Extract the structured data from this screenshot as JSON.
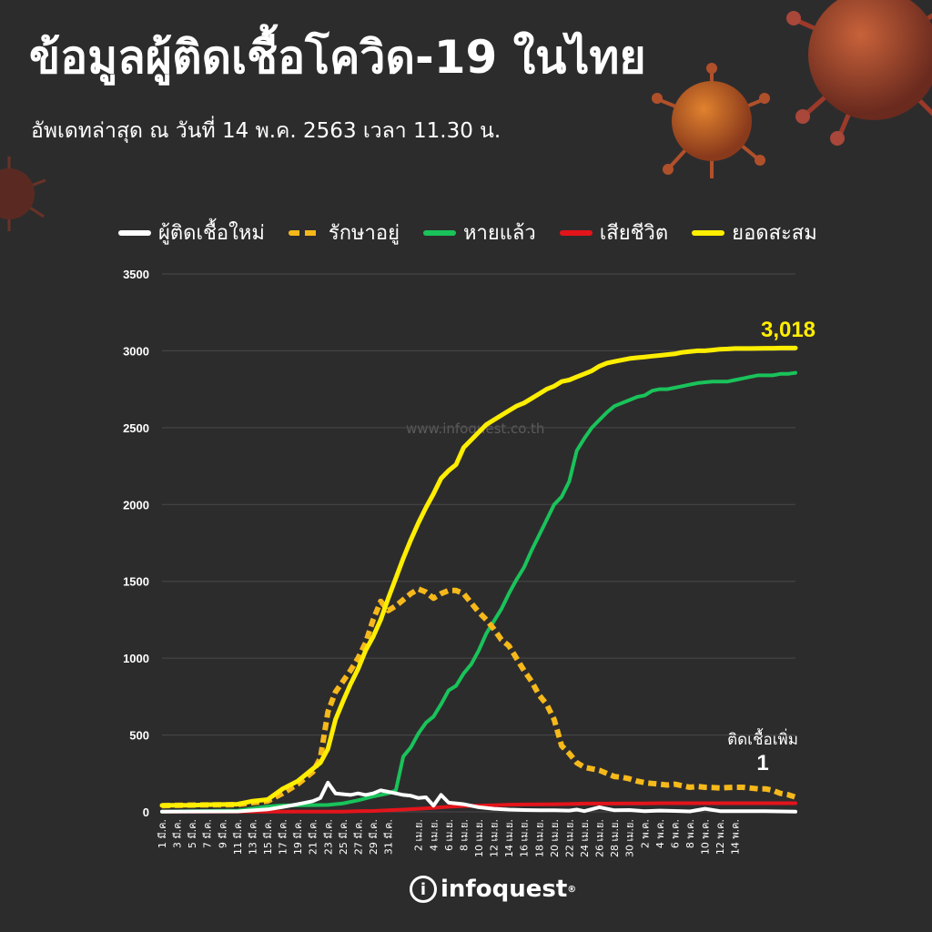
{
  "header": {
    "title": "ข้อมูลผู้ติดเชื้อโควิด-19 ในไทย",
    "subtitle": "อัพเดทล่าสุด ณ วันที่  14 พ.ค. 2563 เวลา 11.30 น."
  },
  "watermark": "www.infoquest.co.th",
  "brand": {
    "mark": "i",
    "name": "infoquest",
    "sup": "®"
  },
  "colors": {
    "background": "#2d2c2d",
    "new_cases": "#ffffff",
    "active": "#f6b91a",
    "recovered": "#19c35a",
    "deaths": "#e4141b",
    "cumulative": "#ffee00"
  },
  "chart_data": {
    "type": "line",
    "title": "ข้อมูลผู้ติดเชื้อโควิด-19 ในไทย",
    "xlabel": "",
    "ylabel": "",
    "ylim": [
      0,
      3500
    ],
    "yticks": [
      0,
      500,
      1000,
      1500,
      2000,
      2500,
      3000,
      3500
    ],
    "grid": true,
    "legend_position": "top",
    "x_tick_labels": [
      "1 มี.ค.",
      "3 มี.ค.",
      "5 มี.ค.",
      "7 มี.ค.",
      "9 มี.ค.",
      "11 มี.ค.",
      "13 มี.ค.",
      "15 มี.ค.",
      "17 มี.ค.",
      "19 มี.ค.",
      "21 มี.ค.",
      "23 มี.ค.",
      "25 มี.ค.",
      "27 มี.ค.",
      "29 มี.ค.",
      "31 มี.ค.",
      "2 เม.ย.",
      "4 เม.ย.",
      "6 เม.ย.",
      "8 เม.ย.",
      "10 เม.ย.",
      "12 เม.ย.",
      "14 เม.ย.",
      "16 เม.ย.",
      "18 เม.ย.",
      "20 เม.ย.",
      "22 เม.ย.",
      "24 เม.ย.",
      "26 เม.ย.",
      "28 เม.ย.",
      "30 เม.ย.",
      "2 พ.ค.",
      "4 พ.ค.",
      "6 พ.ค.",
      "8 พ.ค.",
      "10 พ.ค.",
      "12 พ.ค.",
      "14 พ.ค."
    ],
    "series": [
      {
        "name": "ผู้ติดเชื้อใหม่",
        "style": "solid",
        "points": [
          [
            0,
            1
          ],
          [
            10,
            3
          ],
          [
            14,
            16
          ],
          [
            16,
            32
          ],
          [
            18,
            50
          ],
          [
            19,
            60
          ],
          [
            20,
            70
          ],
          [
            21,
            90
          ],
          [
            22,
            190
          ],
          [
            23,
            120
          ],
          [
            25,
            110
          ],
          [
            26,
            120
          ],
          [
            27,
            110
          ],
          [
            28,
            120
          ],
          [
            29,
            140
          ],
          [
            30,
            130
          ],
          [
            31,
            120
          ],
          [
            32,
            110
          ],
          [
            33,
            105
          ],
          [
            34,
            90
          ],
          [
            35,
            95
          ],
          [
            36,
            40
          ],
          [
            37,
            110
          ],
          [
            38,
            60
          ],
          [
            40,
            50
          ],
          [
            42,
            30
          ],
          [
            44,
            20
          ],
          [
            46,
            15
          ],
          [
            48,
            12
          ],
          [
            50,
            10
          ],
          [
            52,
            10
          ],
          [
            54,
            8
          ],
          [
            55,
            15
          ],
          [
            56,
            5
          ],
          [
            58,
            30
          ],
          [
            60,
            10
          ],
          [
            62,
            12
          ],
          [
            64,
            5
          ],
          [
            66,
            8
          ],
          [
            68,
            6
          ],
          [
            70,
            3
          ],
          [
            72,
            20
          ],
          [
            74,
            5
          ],
          [
            76,
            4
          ],
          [
            78,
            5
          ],
          [
            80,
            4
          ],
          [
            82,
            3
          ],
          [
            84,
            1
          ]
        ]
      },
      {
        "name": "รักษาอยู่",
        "style": "dashed",
        "points": [
          [
            0,
            40
          ],
          [
            5,
            45
          ],
          [
            10,
            47
          ],
          [
            12,
            60
          ],
          [
            14,
            70
          ],
          [
            16,
            120
          ],
          [
            18,
            180
          ],
          [
            19,
            220
          ],
          [
            20,
            260
          ],
          [
            21,
            350
          ],
          [
            22,
            650
          ],
          [
            23,
            780
          ],
          [
            24,
            850
          ],
          [
            25,
            920
          ],
          [
            26,
            1000
          ],
          [
            27,
            1100
          ],
          [
            28,
            1250
          ],
          [
            29,
            1370
          ],
          [
            30,
            1310
          ],
          [
            31,
            1340
          ],
          [
            32,
            1380
          ],
          [
            33,
            1420
          ],
          [
            34,
            1450
          ],
          [
            35,
            1430
          ],
          [
            36,
            1390
          ],
          [
            37,
            1420
          ],
          [
            38,
            1440
          ],
          [
            39,
            1440
          ],
          [
            40,
            1420
          ],
          [
            41,
            1360
          ],
          [
            42,
            1300
          ],
          [
            43,
            1250
          ],
          [
            44,
            1190
          ],
          [
            45,
            1120
          ],
          [
            46,
            1080
          ],
          [
            47,
            1000
          ],
          [
            48,
            920
          ],
          [
            49,
            850
          ],
          [
            50,
            760
          ],
          [
            51,
            700
          ],
          [
            52,
            600
          ],
          [
            53,
            430
          ],
          [
            54,
            380
          ],
          [
            55,
            320
          ],
          [
            56,
            290
          ],
          [
            57,
            280
          ],
          [
            58,
            270
          ],
          [
            59,
            250
          ],
          [
            60,
            230
          ],
          [
            61,
            225
          ],
          [
            62,
            215
          ],
          [
            63,
            200
          ],
          [
            64,
            190
          ],
          [
            65,
            185
          ],
          [
            66,
            180
          ],
          [
            67,
            175
          ],
          [
            68,
            180
          ],
          [
            69,
            170
          ],
          [
            70,
            160
          ],
          [
            71,
            165
          ],
          [
            72,
            160
          ],
          [
            73,
            158
          ],
          [
            74,
            155
          ],
          [
            75,
            158
          ],
          [
            76,
            160
          ],
          [
            77,
            160
          ],
          [
            78,
            155
          ],
          [
            79,
            150
          ],
          [
            80,
            150
          ],
          [
            81,
            140
          ],
          [
            82,
            120
          ],
          [
            83,
            112
          ],
          [
            84,
            96
          ]
        ]
      },
      {
        "name": "หายแล้ว",
        "style": "solid",
        "points": [
          [
            0,
            1
          ],
          [
            10,
            8
          ],
          [
            14,
            35
          ],
          [
            16,
            42
          ],
          [
            20,
            44
          ],
          [
            22,
            45
          ],
          [
            24,
            55
          ],
          [
            26,
            75
          ],
          [
            28,
            100
          ],
          [
            30,
            120
          ],
          [
            31,
            140
          ],
          [
            32,
            360
          ],
          [
            33,
            420
          ],
          [
            34,
            510
          ],
          [
            35,
            580
          ],
          [
            36,
            620
          ],
          [
            37,
            700
          ],
          [
            38,
            790
          ],
          [
            39,
            820
          ],
          [
            40,
            900
          ],
          [
            41,
            960
          ],
          [
            42,
            1050
          ],
          [
            43,
            1160
          ],
          [
            44,
            1240
          ],
          [
            45,
            1320
          ],
          [
            46,
            1420
          ],
          [
            47,
            1510
          ],
          [
            48,
            1590
          ],
          [
            49,
            1700
          ],
          [
            50,
            1800
          ],
          [
            51,
            1900
          ],
          [
            52,
            2000
          ],
          [
            53,
            2050
          ],
          [
            54,
            2150
          ],
          [
            55,
            2350
          ],
          [
            56,
            2430
          ],
          [
            57,
            2500
          ],
          [
            58,
            2550
          ],
          [
            59,
            2600
          ],
          [
            60,
            2640
          ],
          [
            61,
            2660
          ],
          [
            62,
            2680
          ],
          [
            63,
            2700
          ],
          [
            64,
            2710
          ],
          [
            65,
            2740
          ],
          [
            66,
            2750
          ],
          [
            67,
            2750
          ],
          [
            68,
            2760
          ],
          [
            69,
            2770
          ],
          [
            70,
            2780
          ],
          [
            71,
            2790
          ],
          [
            72,
            2795
          ],
          [
            73,
            2800
          ],
          [
            74,
            2800
          ],
          [
            75,
            2800
          ],
          [
            76,
            2810
          ],
          [
            77,
            2820
          ],
          [
            78,
            2830
          ],
          [
            79,
            2840
          ],
          [
            80,
            2840
          ],
          [
            81,
            2840
          ],
          [
            82,
            2850
          ],
          [
            83,
            2850
          ],
          [
            84,
            2857
          ]
        ]
      },
      {
        "name": "เสียชีวิต",
        "style": "solid",
        "points": [
          [
            0,
            1
          ],
          [
            20,
            1
          ],
          [
            22,
            1
          ],
          [
            24,
            2
          ],
          [
            26,
            4
          ],
          [
            28,
            6
          ],
          [
            30,
            10
          ],
          [
            32,
            15
          ],
          [
            34,
            20
          ],
          [
            36,
            26
          ],
          [
            38,
            33
          ],
          [
            40,
            38
          ],
          [
            42,
            41
          ],
          [
            44,
            43
          ],
          [
            46,
            47
          ],
          [
            48,
            48
          ],
          [
            50,
            49
          ],
          [
            52,
            50
          ],
          [
            54,
            51
          ],
          [
            56,
            54
          ],
          [
            58,
            54
          ],
          [
            60,
            54
          ],
          [
            62,
            55
          ],
          [
            64,
            55
          ],
          [
            66,
            56
          ],
          [
            68,
            56
          ],
          [
            70,
            56
          ],
          [
            72,
            56
          ],
          [
            74,
            56
          ],
          [
            76,
            56
          ],
          [
            78,
            56
          ],
          [
            80,
            56
          ],
          [
            82,
            56
          ],
          [
            84,
            56
          ]
        ]
      },
      {
        "name": "ยอดสะสม",
        "style": "solid",
        "points": [
          [
            0,
            42
          ],
          [
            2,
            43
          ],
          [
            4,
            43
          ],
          [
            6,
            47
          ],
          [
            8,
            48
          ],
          [
            10,
            50
          ],
          [
            12,
            70
          ],
          [
            14,
            80
          ],
          [
            16,
            150
          ],
          [
            18,
            200
          ],
          [
            19,
            240
          ],
          [
            20,
            280
          ],
          [
            21,
            320
          ],
          [
            22,
            410
          ],
          [
            23,
            600
          ],
          [
            24,
            720
          ],
          [
            25,
            830
          ],
          [
            26,
            930
          ],
          [
            27,
            1050
          ],
          [
            28,
            1140
          ],
          [
            29,
            1250
          ],
          [
            30,
            1390
          ],
          [
            31,
            1520
          ],
          [
            32,
            1650
          ],
          [
            33,
            1770
          ],
          [
            34,
            1880
          ],
          [
            35,
            1980
          ],
          [
            36,
            2070
          ],
          [
            37,
            2170
          ],
          [
            38,
            2220
          ],
          [
            39,
            2260
          ],
          [
            40,
            2370
          ],
          [
            41,
            2420
          ],
          [
            42,
            2470
          ],
          [
            43,
            2520
          ],
          [
            44,
            2550
          ],
          [
            45,
            2580
          ],
          [
            46,
            2610
          ],
          [
            47,
            2640
          ],
          [
            48,
            2660
          ],
          [
            49,
            2690
          ],
          [
            50,
            2720
          ],
          [
            51,
            2750
          ],
          [
            52,
            2770
          ],
          [
            53,
            2800
          ],
          [
            54,
            2810
          ],
          [
            55,
            2830
          ],
          [
            56,
            2850
          ],
          [
            57,
            2870
          ],
          [
            58,
            2900
          ],
          [
            59,
            2920
          ],
          [
            60,
            2930
          ],
          [
            61,
            2940
          ],
          [
            62,
            2950
          ],
          [
            63,
            2955
          ],
          [
            64,
            2960
          ],
          [
            65,
            2965
          ],
          [
            66,
            2970
          ],
          [
            67,
            2975
          ],
          [
            68,
            2980
          ],
          [
            69,
            2990
          ],
          [
            70,
            2995
          ],
          [
            71,
            3000
          ],
          [
            72,
            3000
          ],
          [
            73,
            3005
          ],
          [
            74,
            3010
          ],
          [
            75,
            3012
          ],
          [
            76,
            3015
          ],
          [
            77,
            3015
          ],
          [
            78,
            3015
          ],
          [
            79,
            3016
          ],
          [
            80,
            3017
          ],
          [
            81,
            3017
          ],
          [
            82,
            3018
          ],
          [
            83,
            3018
          ],
          [
            84,
            3018
          ]
        ]
      }
    ],
    "annotations": {
      "cumulative_label": "3,018",
      "new_cases_caption": "ติดเชื้อเพิ่ม",
      "new_cases_value": "1"
    }
  }
}
